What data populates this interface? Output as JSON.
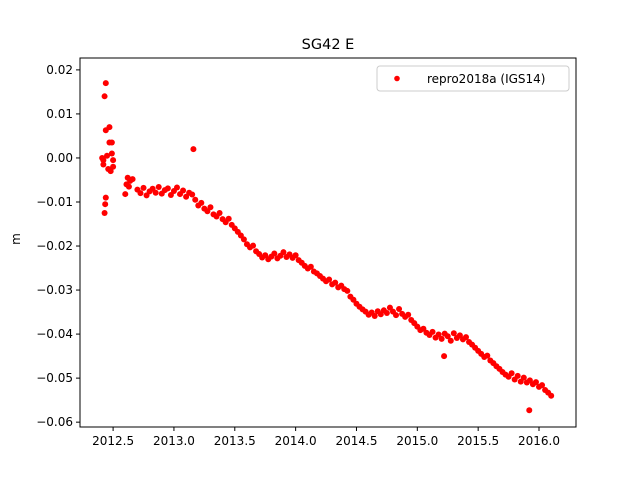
{
  "chart_data": {
    "type": "scatter",
    "title": "SG42 E",
    "xlabel": "",
    "ylabel": "m",
    "xlim": [
      2012.228,
      2016.304
    ],
    "ylim": [
      -0.0611,
      0.0227
    ],
    "xticks": [
      2012.5,
      2013.0,
      2013.5,
      2014.0,
      2014.5,
      2015.0,
      2015.5,
      2016.0
    ],
    "xtick_labels": [
      "2012.5",
      "2013.0",
      "2013.5",
      "2014.0",
      "2014.5",
      "2015.0",
      "2015.5",
      "2016.0"
    ],
    "yticks": [
      0.02,
      0.01,
      0.0,
      -0.01,
      -0.02,
      -0.03,
      -0.04,
      -0.05,
      -0.06
    ],
    "ytick_labels": [
      "0.02",
      "0.01",
      "0.00",
      "−0.01",
      "−0.02",
      "−0.03",
      "−0.04",
      "−0.05",
      "−0.06"
    ],
    "grid": false,
    "legend_position": "top-right",
    "series": [
      {
        "name": "repro2018a (IGS14)",
        "color": "#ff0000",
        "marker": "circle",
        "points": [
          [
            2012.41,
            0.0
          ],
          [
            2012.42,
            -0.0005
          ],
          [
            2012.42,
            -0.0015
          ],
          [
            2012.43,
            0.014
          ],
          [
            2012.43,
            -0.0125
          ],
          [
            2012.435,
            -0.0105
          ],
          [
            2012.44,
            -0.009
          ],
          [
            2012.44,
            0.017
          ],
          [
            2012.44,
            0.0063
          ],
          [
            2012.45,
            0.0005
          ],
          [
            2012.46,
            -0.0025
          ],
          [
            2012.47,
            0.007
          ],
          [
            2012.47,
            0.0035
          ],
          [
            2012.48,
            -0.003
          ],
          [
            2012.49,
            0.0035
          ],
          [
            2012.49,
            0.001
          ],
          [
            2012.5,
            -0.0005
          ],
          [
            2012.5,
            -0.002
          ],
          [
            2012.6,
            -0.0082
          ],
          [
            2012.61,
            -0.006
          ],
          [
            2012.62,
            -0.0045
          ],
          [
            2012.63,
            -0.0065
          ],
          [
            2012.64,
            -0.0052
          ],
          [
            2012.66,
            -0.0048
          ],
          [
            2012.7,
            -0.0072
          ],
          [
            2012.725,
            -0.008
          ],
          [
            2012.75,
            -0.0068
          ],
          [
            2012.775,
            -0.0085
          ],
          [
            2012.8,
            -0.0076
          ],
          [
            2012.825,
            -0.007
          ],
          [
            2012.85,
            -0.0079
          ],
          [
            2012.875,
            -0.0066
          ],
          [
            2012.9,
            -0.0081
          ],
          [
            2012.925,
            -0.0073
          ],
          [
            2012.95,
            -0.0069
          ],
          [
            2012.975,
            -0.0084
          ],
          [
            2013.0,
            -0.0075
          ],
          [
            2013.025,
            -0.0067
          ],
          [
            2013.05,
            -0.0082
          ],
          [
            2013.075,
            -0.0074
          ],
          [
            2013.1,
            -0.0088
          ],
          [
            2013.125,
            -0.0079
          ],
          [
            2013.15,
            -0.0083
          ],
          [
            2013.16,
            0.002
          ],
          [
            2013.175,
            -0.0095
          ],
          [
            2013.2,
            -0.0108
          ],
          [
            2013.225,
            -0.0102
          ],
          [
            2013.25,
            -0.0115
          ],
          [
            2013.275,
            -0.0121
          ],
          [
            2013.3,
            -0.0112
          ],
          [
            2013.325,
            -0.0128
          ],
          [
            2013.35,
            -0.0133
          ],
          [
            2013.375,
            -0.0125
          ],
          [
            2013.4,
            -0.0139
          ],
          [
            2013.425,
            -0.0146
          ],
          [
            2013.45,
            -0.0138
          ],
          [
            2013.475,
            -0.0152
          ],
          [
            2013.5,
            -0.016
          ],
          [
            2013.525,
            -0.0168
          ],
          [
            2013.55,
            -0.0176
          ],
          [
            2013.575,
            -0.0185
          ],
          [
            2013.6,
            -0.0196
          ],
          [
            2013.625,
            -0.0203
          ],
          [
            2013.65,
            -0.0199
          ],
          [
            2013.675,
            -0.0212
          ],
          [
            2013.7,
            -0.0218
          ],
          [
            2013.725,
            -0.0226
          ],
          [
            2013.75,
            -0.0221
          ],
          [
            2013.775,
            -0.023
          ],
          [
            2013.8,
            -0.0224
          ],
          [
            2013.825,
            -0.0217
          ],
          [
            2013.85,
            -0.0228
          ],
          [
            2013.875,
            -0.0222
          ],
          [
            2013.9,
            -0.0214
          ],
          [
            2013.925,
            -0.0225
          ],
          [
            2013.95,
            -0.0219
          ],
          [
            2013.975,
            -0.0227
          ],
          [
            2014.0,
            -0.0221
          ],
          [
            2014.025,
            -0.0232
          ],
          [
            2014.05,
            -0.0238
          ],
          [
            2014.075,
            -0.0245
          ],
          [
            2014.1,
            -0.0251
          ],
          [
            2014.125,
            -0.0247
          ],
          [
            2014.15,
            -0.0258
          ],
          [
            2014.175,
            -0.0262
          ],
          [
            2014.2,
            -0.0268
          ],
          [
            2014.225,
            -0.0274
          ],
          [
            2014.25,
            -0.028
          ],
          [
            2014.275,
            -0.0276
          ],
          [
            2014.3,
            -0.0287
          ],
          [
            2014.325,
            -0.0283
          ],
          [
            2014.35,
            -0.0294
          ],
          [
            2014.375,
            -0.029
          ],
          [
            2014.4,
            -0.0298
          ],
          [
            2014.425,
            -0.0302
          ],
          [
            2014.45,
            -0.0315
          ],
          [
            2014.475,
            -0.0322
          ],
          [
            2014.5,
            -0.0331
          ],
          [
            2014.525,
            -0.0338
          ],
          [
            2014.55,
            -0.0344
          ],
          [
            2014.575,
            -0.0349
          ],
          [
            2014.6,
            -0.0356
          ],
          [
            2014.625,
            -0.0351
          ],
          [
            2014.65,
            -0.0359
          ],
          [
            2014.675,
            -0.0348
          ],
          [
            2014.7,
            -0.0355
          ],
          [
            2014.725,
            -0.0346
          ],
          [
            2014.75,
            -0.0352
          ],
          [
            2014.775,
            -0.034
          ],
          [
            2014.8,
            -0.0349
          ],
          [
            2014.825,
            -0.0357
          ],
          [
            2014.85,
            -0.0343
          ],
          [
            2014.875,
            -0.0354
          ],
          [
            2014.9,
            -0.0361
          ],
          [
            2014.925,
            -0.0356
          ],
          [
            2014.95,
            -0.0368
          ],
          [
            2014.975,
            -0.0375
          ],
          [
            2015.0,
            -0.0383
          ],
          [
            2015.025,
            -0.0391
          ],
          [
            2015.05,
            -0.0388
          ],
          [
            2015.075,
            -0.0397
          ],
          [
            2015.1,
            -0.0402
          ],
          [
            2015.125,
            -0.0395
          ],
          [
            2015.15,
            -0.0408
          ],
          [
            2015.175,
            -0.0401
          ],
          [
            2015.2,
            -0.0411
          ],
          [
            2015.22,
            -0.045
          ],
          [
            2015.225,
            -0.0399
          ],
          [
            2015.25,
            -0.0405
          ],
          [
            2015.275,
            -0.0415
          ],
          [
            2015.3,
            -0.0398
          ],
          [
            2015.325,
            -0.0409
          ],
          [
            2015.35,
            -0.0403
          ],
          [
            2015.375,
            -0.0412
          ],
          [
            2015.4,
            -0.0407
          ],
          [
            2015.425,
            -0.0418
          ],
          [
            2015.45,
            -0.0424
          ],
          [
            2015.475,
            -0.0431
          ],
          [
            2015.5,
            -0.0438
          ],
          [
            2015.525,
            -0.0445
          ],
          [
            2015.55,
            -0.0452
          ],
          [
            2015.575,
            -0.0449
          ],
          [
            2015.6,
            -0.046
          ],
          [
            2015.625,
            -0.0466
          ],
          [
            2015.65,
            -0.0473
          ],
          [
            2015.675,
            -0.0479
          ],
          [
            2015.7,
            -0.0486
          ],
          [
            2015.725,
            -0.0492
          ],
          [
            2015.75,
            -0.0497
          ],
          [
            2015.775,
            -0.0489
          ],
          [
            2015.8,
            -0.0503
          ],
          [
            2015.825,
            -0.0495
          ],
          [
            2015.85,
            -0.0508
          ],
          [
            2015.875,
            -0.0499
          ],
          [
            2015.9,
            -0.051
          ],
          [
            2015.92,
            -0.0573
          ],
          [
            2015.925,
            -0.0505
          ],
          [
            2015.95,
            -0.0514
          ],
          [
            2015.975,
            -0.0509
          ],
          [
            2016.0,
            -0.052
          ],
          [
            2016.025,
            -0.0516
          ],
          [
            2016.05,
            -0.0527
          ],
          [
            2016.075,
            -0.0533
          ],
          [
            2016.1,
            -0.054
          ]
        ]
      }
    ]
  }
}
